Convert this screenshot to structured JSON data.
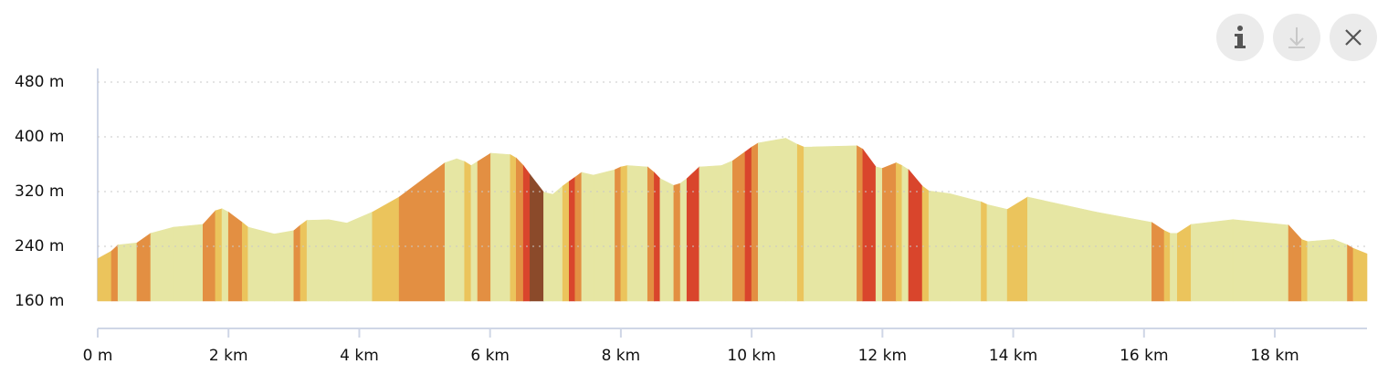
{
  "chart_data": {
    "type": "elevation",
    "x": [
      0,
      0.21,
      0.31,
      0.6,
      0.81,
      1.16,
      1.61,
      1.8,
      1.9,
      2.0,
      2.21,
      2.3,
      2.7,
      3.0,
      3.1,
      3.2,
      3.53,
      3.81,
      4.2,
      4.61,
      5.31,
      5.49,
      5.61,
      5.71,
      5.81,
      6.01,
      6.31,
      6.4,
      6.51,
      6.61,
      6.82,
      6.96,
      7.11,
      7.21,
      7.3,
      7.4,
      7.58,
      7.91,
      8.0,
      8.1,
      8.41,
      8.51,
      8.6,
      8.81,
      8.91,
      9.01,
      9.2,
      9.54,
      9.71,
      9.9,
      10.0,
      10.1,
      10.52,
      10.7,
      10.8,
      11.61,
      11.7,
      11.9,
      12.0,
      12.21,
      12.3,
      12.4,
      12.61,
      12.71,
      13.03,
      13.51,
      13.6,
      13.91,
      14.22,
      15.27,
      16.12,
      16.31,
      16.4,
      16.51,
      16.72,
      17.36,
      18.21,
      18.41,
      18.5,
      18.9,
      19.11,
      19.2,
      19.41
    ],
    "values": [
      222,
      233,
      242,
      245,
      259,
      268,
      272,
      292,
      295,
      290,
      275,
      268,
      258,
      263,
      271,
      278,
      279,
      274,
      290,
      312,
      362,
      368,
      364,
      358,
      364,
      376,
      374,
      369,
      358,
      345,
      319,
      316,
      328,
      335,
      341,
      348,
      344,
      352,
      356,
      358,
      356,
      348,
      339,
      329,
      332,
      339,
      356,
      358,
      365,
      378,
      385,
      391,
      398,
      389,
      385,
      387,
      382,
      356,
      354,
      362,
      358,
      352,
      328,
      321,
      317,
      305,
      301,
      294,
      312,
      290,
      275,
      263,
      259,
      259,
      272,
      279,
      271,
      250,
      247,
      250,
      242,
      237,
      229
    ],
    "segment_colors": [
      "#ebc45c",
      "#e38f42",
      "#e6e6a3",
      "#e38f42",
      "#e6e6a3",
      "#e6e6a3",
      "#e38f42",
      "#ebc45c",
      "#e6e6a3",
      "#e38f42",
      "#ebc45c",
      "#e6e6a3",
      "#e6e6a3",
      "#e38f42",
      "#ebc45c",
      "#e6e6a3",
      "#e6e6a3",
      "#e6e6a3",
      "#ebc45c",
      "#e38f42",
      "#e6e6a3",
      "#e6e6a3",
      "#ebc45c",
      "#e6e6a3",
      "#e38f42",
      "#e6e6a3",
      "#ebc45c",
      "#e38f42",
      "#d9452c",
      "#8b4a2a",
      "#e6e6a3",
      "#e6e6a3",
      "#ebc45c",
      "#d9452c",
      "#e38f42",
      "#e6e6a3",
      "#e6e6a3",
      "#e38f42",
      "#ebc45c",
      "#e6e6a3",
      "#e38f42",
      "#d9452c",
      "#e6e6a3",
      "#e38f42",
      "#e6e6a3",
      "#d9452c",
      "#e6e6a3",
      "#e6e6a3",
      "#e38f42",
      "#d9452c",
      "#e38f42",
      "#e6e6a3",
      "#e6e6a3",
      "#ebc45c",
      "#e6e6a3",
      "#e38f42",
      "#d9452c",
      "#e6e6a3",
      "#e38f42",
      "#ebc45c",
      "#e6e6a3",
      "#d9452c",
      "#ebc45c",
      "#e6e6a3",
      "#e6e6a3",
      "#ebc45c",
      "#e6e6a3",
      "#ebc45c",
      "#e6e6a3",
      "#e6e6a3",
      "#e38f42",
      "#ebc45c",
      "#e6e6a3",
      "#ebc45c",
      "#e6e6a3",
      "#e6e6a3",
      "#e38f42",
      "#ebc45c",
      "#e6e6a3",
      "#e6e6a3",
      "#e38f42",
      "#ebc45c"
    ],
    "xlim": [
      0,
      19.41
    ],
    "ylim": [
      160,
      480
    ],
    "xticks": [
      {
        "value": 0,
        "label": "0 m"
      },
      {
        "value": 2,
        "label": "2 km"
      },
      {
        "value": 4,
        "label": "4 km"
      },
      {
        "value": 6,
        "label": "6 km"
      },
      {
        "value": 8,
        "label": "8 km"
      },
      {
        "value": 10,
        "label": "10 km"
      },
      {
        "value": 12,
        "label": "12 km"
      },
      {
        "value": 14,
        "label": "14 km"
      },
      {
        "value": 16,
        "label": "16 km"
      },
      {
        "value": 18,
        "label": "18 km"
      }
    ],
    "yticks": [
      {
        "value": 160,
        "label": "160 m"
      },
      {
        "value": 240,
        "label": "240 m"
      },
      {
        "value": 320,
        "label": "320 m"
      },
      {
        "value": 400,
        "label": "400 m"
      },
      {
        "value": 480,
        "label": "480 m"
      }
    ],
    "grid": true
  }
}
